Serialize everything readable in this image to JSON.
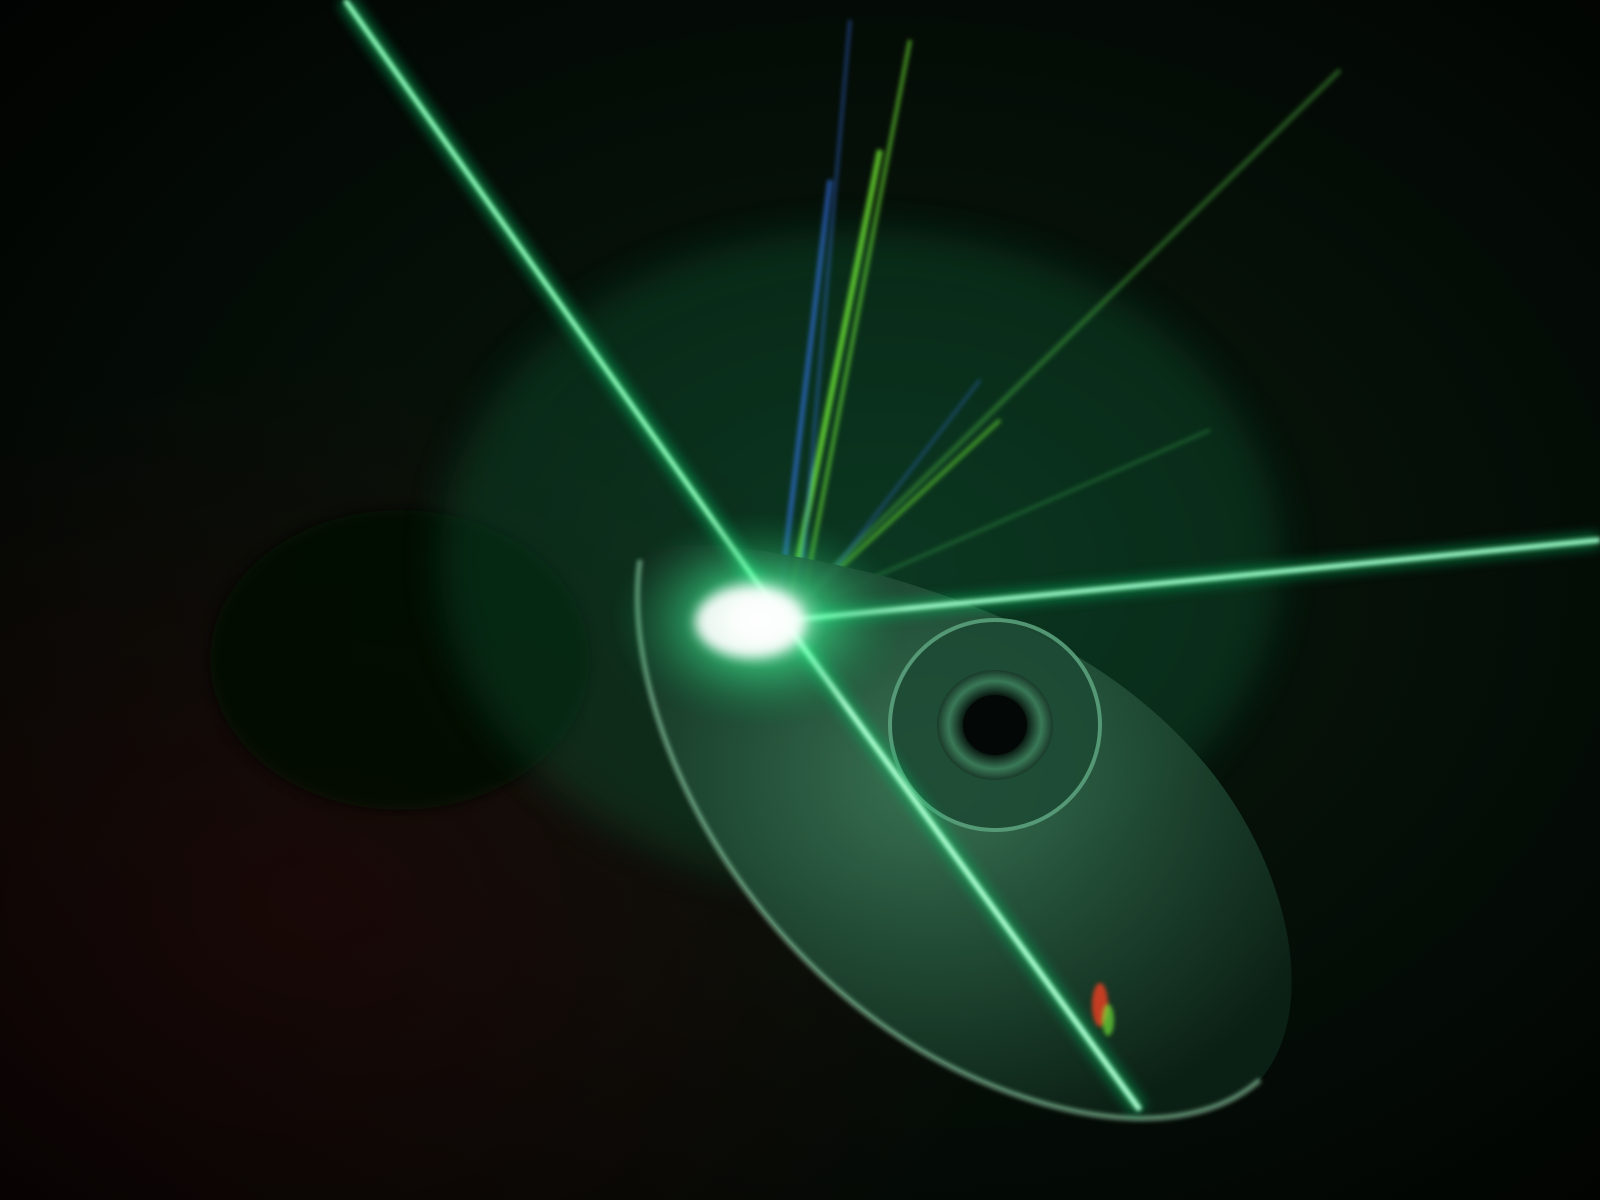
{
  "scene": {
    "subject": "laser-beam-diffracting-off-compact-disc",
    "colors": {
      "background": "#020302",
      "beam_core": "#f2fff6",
      "beam_green": "#3dff9a",
      "beam_glow": "#12c46a",
      "disc_rim": "#9fe0b8",
      "disc_surface": "#1f4a33",
      "disc_hub": "#0a1a12",
      "spectral_green": "#7dff3a",
      "spectral_blue": "#3a7dff",
      "spectral_red": "#ff4020",
      "dark_red": "#2a0508"
    },
    "icons": [
      "laser-beam-icon",
      "compact-disc-icon"
    ]
  }
}
